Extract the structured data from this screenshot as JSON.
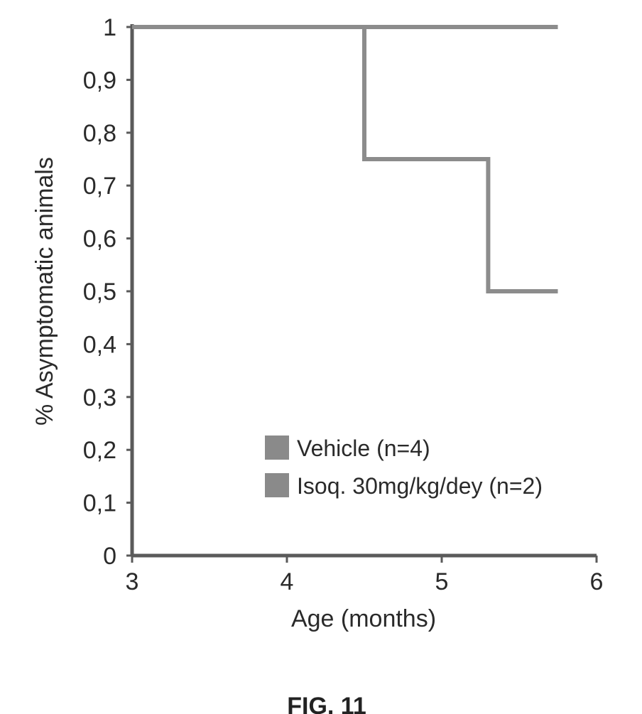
{
  "chart_data": {
    "type": "line",
    "step": true,
    "xlabel": "Age (months)",
    "ylabel": "% Asymptomatic animals",
    "xlim": [
      3,
      6
    ],
    "ylim": [
      0,
      1
    ],
    "x_ticks": [
      3,
      4,
      5,
      6
    ],
    "y_ticks": [
      0,
      0.1,
      0.2,
      0.3,
      0.4,
      0.5,
      0.6,
      0.7,
      0.8,
      0.9,
      1
    ],
    "x_tick_labels": [
      "3",
      "4",
      "5",
      "6"
    ],
    "y_tick_labels": [
      "0",
      "0,1",
      "0,2",
      "0,3",
      "0,4",
      "0,5",
      "0,6",
      "0,7",
      "0,8",
      "0,9",
      "1"
    ],
    "grid": false,
    "legend_position": "bottom-right",
    "series": [
      {
        "name": "Vehicle (n=4)",
        "x": [
          3,
          4.5,
          4.5,
          5.3,
          5.3,
          5.75
        ],
        "y": [
          1,
          1,
          0.75,
          0.75,
          0.5,
          0.5
        ]
      },
      {
        "name": "Isoq. 30mg/kg/dey (n=2)",
        "x": [
          3,
          5.75
        ],
        "y": [
          1,
          1
        ]
      }
    ]
  },
  "caption": "FIG. 11",
  "colors": {
    "line": "#8c8c8c",
    "axis": "#5a5a5a",
    "legend_box": "#8a8a8a"
  }
}
